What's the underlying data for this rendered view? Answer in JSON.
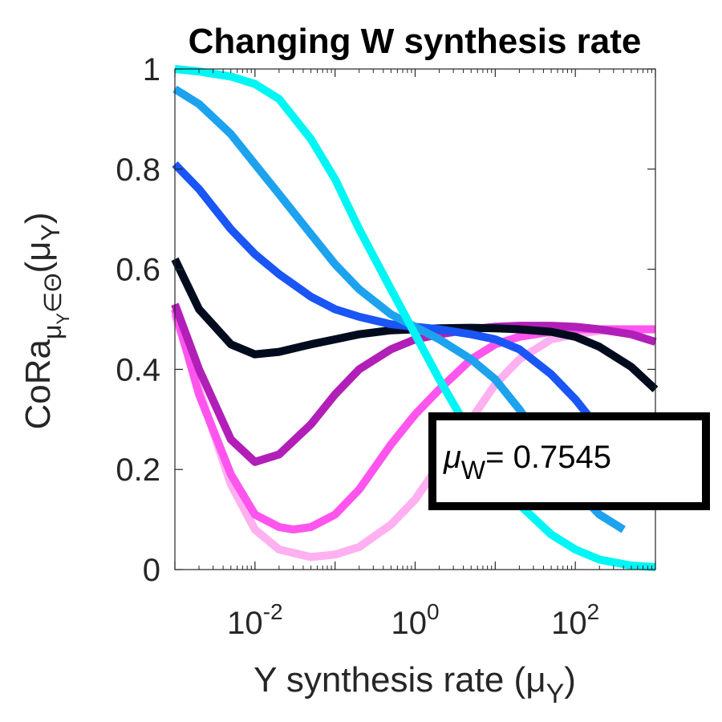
{
  "chart_data": {
    "type": "line",
    "title": "Changing W synthesis rate",
    "ylabel": {
      "base": "CoRa",
      "sub1": "μ",
      "sub2": "Y",
      "sub3": "∈Θ",
      "arg_open": "(μ",
      "arg_sub": "Y",
      "arg_close": ")"
    },
    "xlabel": {
      "text": "Y synthesis rate (μ",
      "sub": "Y",
      "close": ")"
    },
    "xscale": "log",
    "xlim": [
      0.001,
      1000
    ],
    "ylim": [
      0,
      1
    ],
    "xticks": [
      {
        "value": 0.01,
        "base": "10",
        "exp": "-2"
      },
      {
        "value": 1,
        "base": "10",
        "exp": "0"
      },
      {
        "value": 100,
        "base": "10",
        "exp": "2"
      }
    ],
    "yticks": [
      {
        "value": 0,
        "label": "0"
      },
      {
        "value": 0.2,
        "label": "0.2"
      },
      {
        "value": 0.4,
        "label": "0.4"
      },
      {
        "value": 0.6,
        "label": "0.6"
      },
      {
        "value": 0.8,
        "label": "0.8"
      },
      {
        "value": 1,
        "label": "1"
      }
    ],
    "grid": false,
    "annotation": {
      "symbol": "μ",
      "sub": "W",
      "text": "= 0.7545"
    },
    "series": [
      {
        "color": "#ffb0f0",
        "x": [
          0.001,
          0.002,
          0.005,
          0.01,
          0.02,
          0.05,
          0.1,
          0.2,
          0.5,
          1,
          2,
          5,
          10,
          20,
          50,
          100,
          200,
          500,
          1000
        ],
        "y": [
          0.51,
          0.36,
          0.17,
          0.08,
          0.04,
          0.025,
          0.03,
          0.045,
          0.09,
          0.14,
          0.21,
          0.3,
          0.37,
          0.42,
          0.46,
          0.47,
          0.477,
          0.48,
          0.48
        ]
      },
      {
        "color": "#ff55ee",
        "x": [
          0.001,
          0.002,
          0.005,
          0.01,
          0.02,
          0.03,
          0.05,
          0.1,
          0.2,
          0.5,
          1,
          2,
          5,
          10,
          20,
          50,
          100,
          200,
          500,
          1000
        ],
        "y": [
          0.52,
          0.35,
          0.19,
          0.11,
          0.085,
          0.08,
          0.085,
          0.11,
          0.16,
          0.25,
          0.31,
          0.36,
          0.42,
          0.45,
          0.465,
          0.475,
          0.48,
          0.48,
          0.48,
          0.48
        ]
      },
      {
        "color": "#b21fb8",
        "x": [
          0.001,
          0.002,
          0.005,
          0.01,
          0.02,
          0.05,
          0.1,
          0.2,
          0.5,
          1,
          2,
          5,
          10,
          20,
          50,
          100,
          200,
          500,
          1000
        ],
        "y": [
          0.53,
          0.4,
          0.26,
          0.215,
          0.23,
          0.29,
          0.35,
          0.4,
          0.44,
          0.46,
          0.47,
          0.48,
          0.485,
          0.487,
          0.487,
          0.485,
          0.48,
          0.47,
          0.455
        ]
      },
      {
        "color": "#000c1e",
        "x": [
          0.001,
          0.002,
          0.005,
          0.01,
          0.02,
          0.05,
          0.1,
          0.2,
          0.5,
          1,
          2,
          5,
          10,
          20,
          50,
          100,
          200,
          500,
          1000
        ],
        "y": [
          0.62,
          0.52,
          0.45,
          0.43,
          0.435,
          0.45,
          0.46,
          0.47,
          0.478,
          0.48,
          0.482,
          0.483,
          0.482,
          0.48,
          0.475,
          0.465,
          0.445,
          0.405,
          0.36
        ]
      },
      {
        "color": "#1a55f5",
        "x": [
          0.001,
          0.002,
          0.005,
          0.01,
          0.02,
          0.05,
          0.1,
          0.2,
          0.5,
          1,
          2,
          5,
          10,
          20,
          50,
          100,
          200,
          500,
          1000
        ],
        "y": [
          0.81,
          0.76,
          0.68,
          0.63,
          0.59,
          0.545,
          0.52,
          0.505,
          0.49,
          0.485,
          0.48,
          0.47,
          0.46,
          0.44,
          0.39,
          0.34,
          0.28,
          0.2,
          0.16
        ]
      },
      {
        "color": "#1da2ee",
        "x": [
          0.001,
          0.002,
          0.005,
          0.01,
          0.02,
          0.05,
          0.1,
          0.2,
          0.5,
          1,
          2,
          5,
          10,
          20,
          50,
          100,
          200,
          400
        ],
        "y": [
          0.96,
          0.93,
          0.87,
          0.81,
          0.75,
          0.67,
          0.61,
          0.56,
          0.51,
          0.485,
          0.46,
          0.42,
          0.38,
          0.32,
          0.23,
          0.16,
          0.11,
          0.08
        ]
      },
      {
        "color": "#00f5f5",
        "x": [
          0.001,
          0.002,
          0.005,
          0.01,
          0.02,
          0.05,
          0.1,
          0.2,
          0.5,
          1,
          2,
          5,
          10,
          20,
          50,
          100,
          200,
          500,
          1000
        ],
        "y": [
          1.0,
          0.995,
          0.985,
          0.97,
          0.94,
          0.86,
          0.78,
          0.68,
          0.56,
          0.47,
          0.38,
          0.27,
          0.19,
          0.13,
          0.07,
          0.04,
          0.02,
          0.008,
          0.005
        ]
      }
    ]
  }
}
